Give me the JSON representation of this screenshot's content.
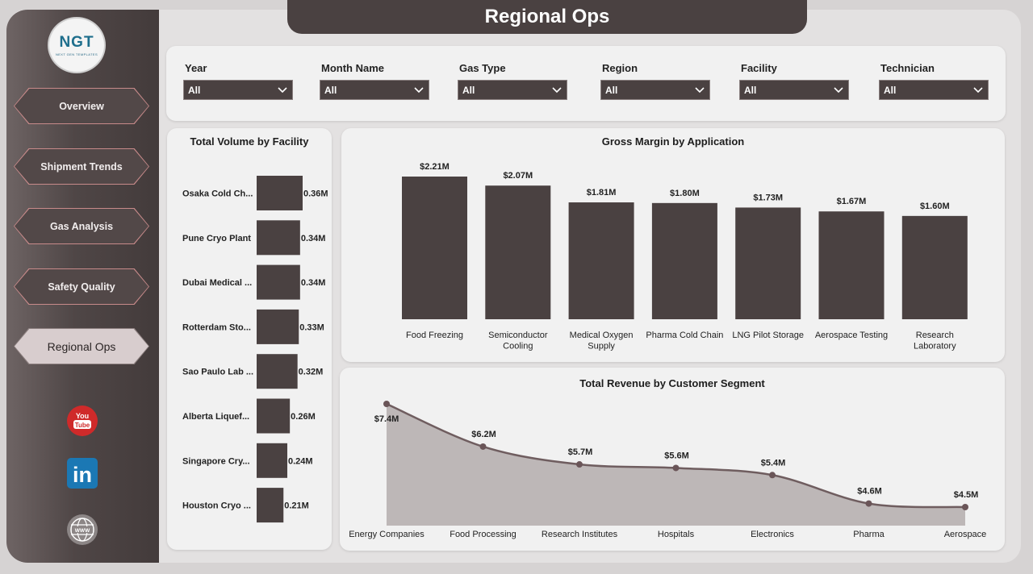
{
  "page_title": "Regional Ops",
  "logo": {
    "mark": "NGT",
    "subtitle": "NEXT GEN TEMPLATES"
  },
  "nav": [
    {
      "label": "Overview",
      "active": false
    },
    {
      "label": "Shipment Trends",
      "active": false
    },
    {
      "label": "Gas Analysis",
      "active": false
    },
    {
      "label": "Safety Quality",
      "active": false
    },
    {
      "label": "Regional Ops",
      "active": true
    }
  ],
  "social": [
    {
      "name": "youtube-icon",
      "text_top": "You",
      "text_bottom": "Tube"
    },
    {
      "name": "linkedin-icon",
      "text": "in"
    },
    {
      "name": "website-icon",
      "text": "WWW"
    }
  ],
  "filters": [
    {
      "label": "Year",
      "value": "All"
    },
    {
      "label": "Month Name",
      "value": "All"
    },
    {
      "label": "Gas Type",
      "value": "All"
    },
    {
      "label": "Region",
      "value": "All"
    },
    {
      "label": "Facility",
      "value": "All"
    },
    {
      "label": "Technician",
      "value": "All"
    }
  ],
  "colors": {
    "bar": "#4a4141",
    "line": "#6f5d5f",
    "area": "#bdb7b7",
    "marker": "#6a5558"
  },
  "chart_data": [
    {
      "type": "bar",
      "orientation": "horizontal",
      "title": "Total Volume by Facility",
      "categories": [
        "Osaka Cold Ch...",
        "Pune Cryo Plant",
        "Dubai Medical ...",
        "Rotterdam Sto...",
        "Sao Paulo Lab ...",
        "Alberta Liquef...",
        "Singapore Cry...",
        "Houston Cryo ..."
      ],
      "values": [
        0.36,
        0.34,
        0.34,
        0.33,
        0.32,
        0.26,
        0.24,
        0.21
      ],
      "labels": [
        "0.36M",
        "0.34M",
        "0.34M",
        "0.33M",
        "0.32M",
        "0.26M",
        "0.24M",
        "0.21M"
      ],
      "unit": "M"
    },
    {
      "type": "bar",
      "title": "Gross Margin by Application",
      "categories": [
        [
          "Food Freezing"
        ],
        [
          "Semiconductor",
          "Cooling"
        ],
        [
          "Medical Oxygen",
          "Supply"
        ],
        [
          "Pharma Cold Chain"
        ],
        [
          "LNG Pilot Storage"
        ],
        [
          "Aerospace Testing"
        ],
        [
          "Research",
          "Laboratory"
        ]
      ],
      "values": [
        2.21,
        2.07,
        1.81,
        1.8,
        1.73,
        1.67,
        1.6
      ],
      "labels": [
        "$2.21M",
        "$2.07M",
        "$1.81M",
        "$1.80M",
        "$1.73M",
        "$1.67M",
        "$1.60M"
      ],
      "unit": "$M"
    },
    {
      "type": "area",
      "title": "Total Revenue by Customer Segment",
      "categories": [
        "Energy Companies",
        "Food Processing",
        "Research Institutes",
        "Hospitals",
        "Electronics",
        "Pharma",
        "Aerospace"
      ],
      "values": [
        7.4,
        6.2,
        5.7,
        5.6,
        5.4,
        4.6,
        4.5
      ],
      "labels": [
        "$7.4M",
        "$6.2M",
        "$5.7M",
        "$5.6M",
        "$5.4M",
        "$4.6M",
        "$4.5M"
      ],
      "unit": "$M"
    }
  ]
}
